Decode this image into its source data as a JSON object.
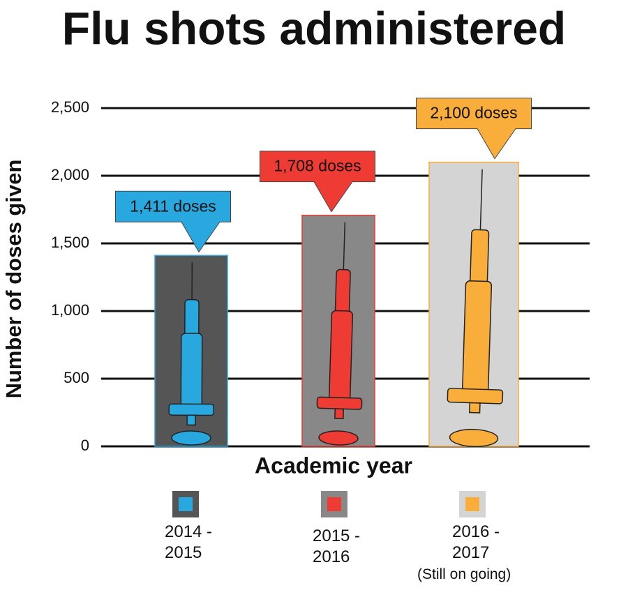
{
  "chart_data": {
    "type": "bar",
    "title": "Flu shots administered",
    "y_label": "Number of doses given",
    "x_label": "Academic year",
    "categories": [
      "2014 - 2015",
      "2015 - 2016",
      "2016 - 2017"
    ],
    "values": [
      1411,
      1708,
      2100
    ],
    "value_labels": [
      "1,411 doses",
      "1,708 doses",
      "2,100 doses"
    ],
    "colors": [
      "#29a8e0",
      "#ee3b33",
      "#f9ad3a"
    ],
    "bar_fills": [
      "#555555",
      "#888888",
      "#d4d4d4"
    ],
    "annotations": [
      "(Still on going)"
    ],
    "ylim": [
      0,
      2500
    ],
    "yticks": [
      0,
      500,
      {
        "value": 1000,
        "label": "1,000"
      },
      {
        "value": 1500,
        "label": "1,500"
      },
      {
        "value": 2000,
        "label": "2,000"
      },
      {
        "value": 2500,
        "label": "2,500"
      }
    ],
    "grid": true
  }
}
